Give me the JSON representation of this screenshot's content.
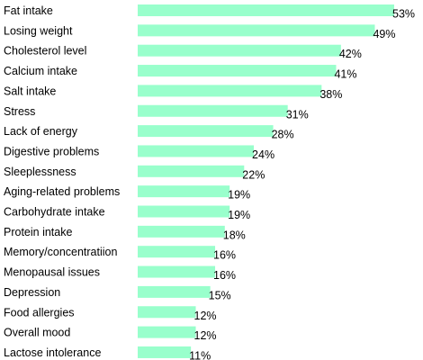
{
  "chart_data": {
    "type": "bar",
    "orientation": "horizontal",
    "categories": [
      "Fat intake",
      "Losing weight",
      "Cholesterol level",
      "Calcium intake",
      "Salt intake",
      "Stress",
      "Lack of energy",
      "Digestive problems",
      "Sleeplessness",
      "Aging-related problems",
      "Carbohydrate intake",
      "Protein intake",
      "Memory/concentratiion",
      "Menopausal issues",
      "Depression",
      "Food allergies",
      "Overall mood",
      "Lactose intolerance"
    ],
    "values": [
      53,
      49,
      42,
      41,
      38,
      31,
      28,
      24,
      22,
      19,
      19,
      18,
      16,
      16,
      15,
      12,
      12,
      11
    ],
    "value_labels": [
      "53%",
      "49%",
      "42%",
      "41%",
      "38%",
      "31%",
      "28%",
      "24%",
      "22%",
      "19%",
      "19%",
      "18%",
      "16%",
      "16%",
      "15%",
      "12%",
      "12%",
      "11%"
    ],
    "title": "",
    "xlabel": "",
    "ylabel": "",
    "xlim": [
      0,
      53
    ],
    "grid": false,
    "legend": "none",
    "bar_color": "#99ffcc"
  }
}
